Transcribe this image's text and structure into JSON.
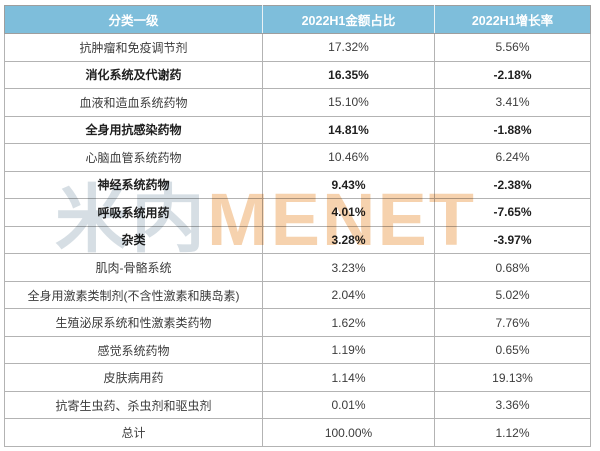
{
  "table": {
    "headers": [
      "分类一级",
      "2022H1金额占比",
      "2022H1增长率"
    ],
    "rows": [
      {
        "category": "抗肿瘤和免疫调节剂",
        "share": "17.32%",
        "growth": "5.56%",
        "bold": false
      },
      {
        "category": "消化系统及代谢药",
        "share": "16.35%",
        "growth": "-2.18%",
        "bold": true
      },
      {
        "category": "血液和造血系统药物",
        "share": "15.10%",
        "growth": "3.41%",
        "bold": false
      },
      {
        "category": "全身用抗感染药物",
        "share": "14.81%",
        "growth": "-1.88%",
        "bold": true
      },
      {
        "category": "心脑血管系统药物",
        "share": "10.46%",
        "growth": "6.24%",
        "bold": false
      },
      {
        "category": "神经系统药物",
        "share": "9.43%",
        "growth": "-2.38%",
        "bold": true
      },
      {
        "category": "呼吸系统用药",
        "share": "4.01%",
        "growth": "-7.65%",
        "bold": true
      },
      {
        "category": "杂类",
        "share": "3.28%",
        "growth": "-3.97%",
        "bold": true
      },
      {
        "category": "肌肉-骨骼系统",
        "share": "3.23%",
        "growth": "0.68%",
        "bold": false
      },
      {
        "category": "全身用激素类制剂(不含性激素和胰岛素)",
        "share": "2.04%",
        "growth": "5.02%",
        "bold": false
      },
      {
        "category": "生殖泌尿系统和性激素类药物",
        "share": "1.62%",
        "growth": "7.76%",
        "bold": false
      },
      {
        "category": "感觉系统药物",
        "share": "1.19%",
        "growth": "0.65%",
        "bold": false
      },
      {
        "category": "皮肤病用药",
        "share": "1.14%",
        "growth": "19.13%",
        "bold": false
      },
      {
        "category": "抗寄生虫药、杀虫剂和驱虫剂",
        "share": "0.01%",
        "growth": "3.36%",
        "bold": false
      },
      {
        "category": "总计",
        "share": "100.00%",
        "growth": "1.12%",
        "bold": false
      }
    ]
  },
  "watermark": {
    "cn": "米内",
    "en": "MENET"
  },
  "colors": {
    "header_bg": "#7EBEDB",
    "header_text": "#FFFFFF",
    "body_text": "#3C3C3C",
    "border": "#B3B3B3",
    "watermark_cn": "#D6DEE4",
    "watermark_en": "#F6D2AE"
  },
  "chart_data": {
    "type": "table",
    "title": "",
    "columns": [
      "分类一级",
      "2022H1金额占比",
      "2022H1增长率"
    ],
    "units": "percent",
    "rows": [
      [
        "抗肿瘤和免疫调节剂",
        17.32,
        5.56
      ],
      [
        "消化系统及代谢药",
        16.35,
        -2.18
      ],
      [
        "血液和造血系统药物",
        15.1,
        3.41
      ],
      [
        "全身用抗感染药物",
        14.81,
        -1.88
      ],
      [
        "心脑血管系统药物",
        10.46,
        6.24
      ],
      [
        "神经系统药物",
        9.43,
        -2.38
      ],
      [
        "呼吸系统用药",
        4.01,
        -7.65
      ],
      [
        "杂类",
        3.28,
        -3.97
      ],
      [
        "肌肉-骨骼系统",
        3.23,
        0.68
      ],
      [
        "全身用激素类制剂(不含性激素和胰岛素)",
        2.04,
        5.02
      ],
      [
        "生殖泌尿系统和性激素类药物",
        1.62,
        7.76
      ],
      [
        "感觉系统药物",
        1.19,
        0.65
      ],
      [
        "皮肤病用药",
        1.14,
        19.13
      ],
      [
        "抗寄生虫药、杀虫剂和驱虫剂",
        0.01,
        3.36
      ],
      [
        "总计",
        100.0,
        1.12
      ]
    ],
    "emphasis_note": "rows with negative growth rendered bold"
  }
}
